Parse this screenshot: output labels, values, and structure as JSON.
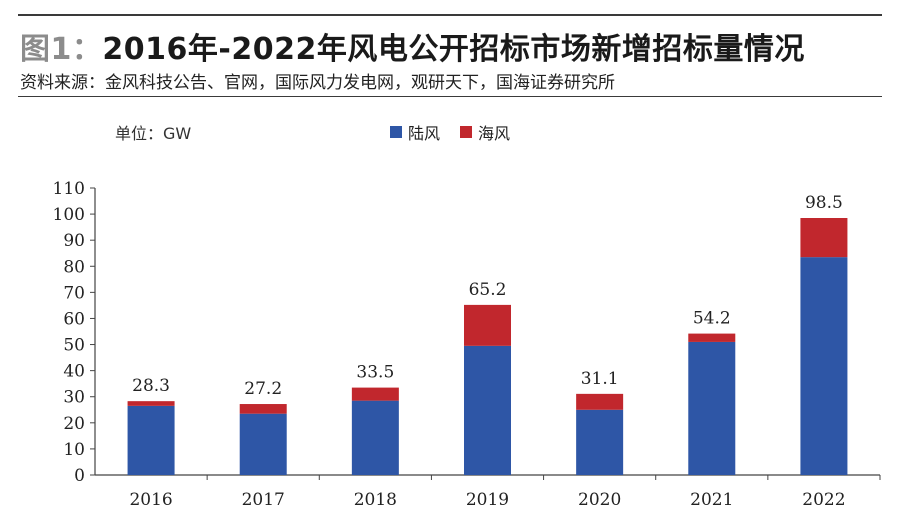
{
  "header": {
    "fig_label": "图1：",
    "title": "2016年-2022年风电公开招标市场新增招标量情况",
    "source": "资料来源：金风科技公告、官网，国际风力发电网，观研天下，国海证券研究所"
  },
  "chart_data": {
    "type": "bar",
    "stacked": true,
    "unit_label": "单位：GW",
    "categories": [
      "2016",
      "2017",
      "2018",
      "2019",
      "2020",
      "2021",
      "2022"
    ],
    "series": [
      {
        "name": "陆风",
        "color": "#2e56a6",
        "values": [
          26.5,
          23.5,
          28.5,
          49.5,
          25.0,
          51.0,
          83.5
        ]
      },
      {
        "name": "海风",
        "color": "#c1272d",
        "values": [
          1.8,
          3.7,
          5.0,
          15.7,
          6.1,
          3.2,
          15.0
        ]
      }
    ],
    "totals": [
      28.3,
      27.2,
      33.5,
      65.2,
      31.1,
      54.2,
      98.5
    ],
    "total_labels": [
      "28.3",
      "27.2",
      "33.5",
      "65.2",
      "31.1",
      "54.2",
      "98.5"
    ],
    "ylim": [
      0,
      110
    ],
    "yticks": [
      "0",
      "10",
      "20",
      "30",
      "40",
      "50",
      "60",
      "70",
      "80",
      "90",
      "100",
      "110"
    ],
    "legend_position": "top-center",
    "grid": false
  }
}
